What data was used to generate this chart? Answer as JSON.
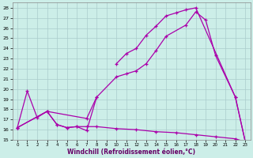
{
  "xlabel": "Windchill (Refroidissement éolien,°C)",
  "bg_color": "#cceee8",
  "grid_color": "#aacccc",
  "line_color": "#aa00aa",
  "xlim": [
    -0.5,
    23.5
  ],
  "ylim": [
    15,
    28.5
  ],
  "xticks": [
    0,
    1,
    2,
    3,
    4,
    5,
    6,
    7,
    8,
    9,
    10,
    11,
    12,
    13,
    14,
    15,
    16,
    17,
    18,
    19,
    20,
    21,
    22,
    23
  ],
  "yticks": [
    15,
    16,
    17,
    18,
    19,
    20,
    21,
    22,
    23,
    24,
    25,
    26,
    27,
    28
  ],
  "curve_upper": {
    "x": [
      10,
      11,
      12,
      13,
      14,
      15,
      16,
      17,
      18,
      22,
      23
    ],
    "y": [
      22.5,
      23.5,
      24.0,
      25.3,
      26.2,
      27.2,
      27.5,
      27.8,
      28.0,
      19.2,
      14.8
    ]
  },
  "curve_mid": {
    "x": [
      0,
      3,
      7,
      8,
      10,
      11,
      12,
      13,
      14,
      15,
      17,
      18,
      19,
      20,
      22,
      23
    ],
    "y": [
      16.2,
      17.8,
      17.1,
      19.2,
      21.2,
      21.5,
      21.8,
      22.5,
      23.8,
      25.2,
      26.3,
      27.6,
      26.8,
      23.3,
      19.2,
      14.8
    ]
  },
  "curve_left_loop": {
    "x": [
      0,
      1,
      2,
      3,
      4,
      5,
      6,
      7,
      8
    ],
    "y": [
      16.2,
      19.8,
      17.2,
      17.8,
      16.5,
      16.2,
      16.3,
      15.9,
      19.2
    ]
  },
  "curve_bottom": {
    "x": [
      0,
      3,
      4,
      5,
      6,
      7,
      8,
      10,
      12,
      14,
      16,
      18,
      20,
      22,
      23
    ],
    "y": [
      16.2,
      17.8,
      16.5,
      16.2,
      16.3,
      16.3,
      16.3,
      16.1,
      16.0,
      15.8,
      15.7,
      15.5,
      15.3,
      15.1,
      14.8
    ]
  }
}
